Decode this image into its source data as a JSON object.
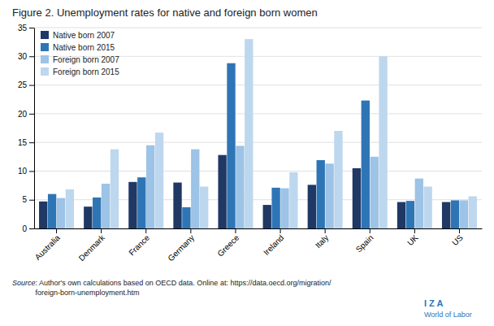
{
  "chart_data": {
    "type": "bar",
    "title": "Figure 2. Unemployment rates for native and foreign born women",
    "categories": [
      "Australia",
      "Denmark",
      "France",
      "Germany",
      "Greece",
      "Ireland",
      "Italy",
      "Spain",
      "UK",
      "US"
    ],
    "series": [
      {
        "name": "Native born 2007",
        "color": "#1f3864",
        "values": [
          4.7,
          3.8,
          8.1,
          8.0,
          12.8,
          4.1,
          7.6,
          10.5,
          4.6,
          4.6
        ]
      },
      {
        "name": "Native born 2015",
        "color": "#2e75b6",
        "values": [
          6.0,
          5.4,
          8.9,
          3.7,
          28.8,
          7.1,
          11.9,
          22.3,
          4.8,
          4.9
        ]
      },
      {
        "name": "Foreign born 2007",
        "color": "#9dc3e6",
        "values": [
          5.3,
          7.8,
          14.5,
          13.8,
          14.4,
          7.0,
          11.3,
          12.5,
          8.7,
          4.9
        ]
      },
      {
        "name": "Foreign born 2015",
        "color": "#bdd7ee",
        "values": [
          6.8,
          13.8,
          16.7,
          7.3,
          33.0,
          9.8,
          17.0,
          30.0,
          7.3,
          5.6
        ]
      }
    ],
    "ylim": [
      0,
      35
    ],
    "yticks": [
      0,
      5,
      10,
      15,
      20,
      25,
      30,
      35
    ],
    "grid": true,
    "legend": "upper left",
    "annotations": [
      "Source",
      ": Author's own calculations based on OECD data. Online at: https://data.oecd.org/migration/",
      "foreign-born-unemployment.htm",
      "I  Z  A",
      "World of Labor"
    ]
  }
}
